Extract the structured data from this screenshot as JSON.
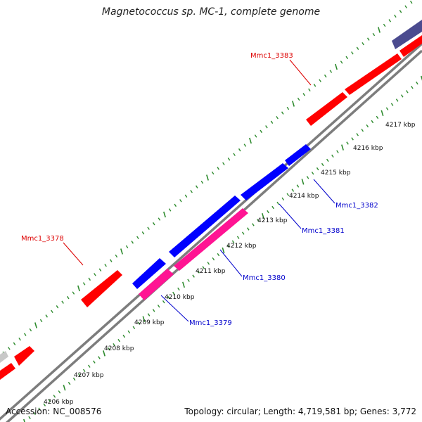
{
  "title": "Magnetococcus sp. MC-1, complete genome",
  "footer": {
    "accession": "Accession: NC_008576",
    "topology": "Topology: circular; Length: 4,719,581 bp; Genes: 3,772"
  },
  "colors": {
    "backbone": "#7d7d7d",
    "tick": "#2e8b2e",
    "forward_gene": "#ff0000",
    "reverse_gene": "#0000ff",
    "reverse_gene_alt": "#ff1493",
    "other_gene": "#4b4b8f",
    "grey_gene": "#c8c8c8",
    "forward_label": "#dd0000",
    "reverse_label": "#0000cc",
    "kbp_label": "#111111"
  },
  "kbp_labels": [
    "4206 kbp",
    "4207 kbp",
    "4208 kbp",
    "4209 kbp",
    "4210 kbp",
    "4211 kbp",
    "4212 kbp",
    "4213 kbp",
    "4214 kbp",
    "4215 kbp",
    "4216 kbp",
    "4217 kbp"
  ],
  "genes": [
    {
      "id": "Mmc1_3378",
      "strand": "forward",
      "labeled": true
    },
    {
      "id": "Mmc1_3379",
      "strand": "reverse",
      "labeled": true
    },
    {
      "id": "Mmc1_3380",
      "strand": "reverse",
      "labeled": true
    },
    {
      "id": "Mmc1_3381",
      "strand": "reverse",
      "labeled": true
    },
    {
      "id": "Mmc1_3382",
      "strand": "reverse",
      "labeled": true
    },
    {
      "id": "Mmc1_3383",
      "strand": "forward",
      "labeled": true
    }
  ]
}
